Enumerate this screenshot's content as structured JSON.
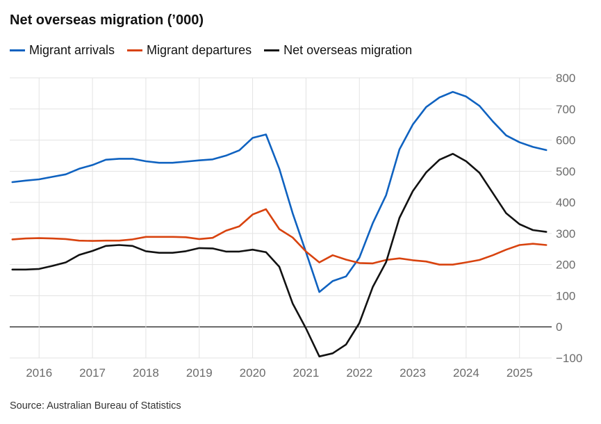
{
  "chart_data": {
    "type": "line",
    "title": "Net overseas migration (’000)",
    "source": "Source: Australian Bureau of Statistics",
    "legend_position": "top-left",
    "grid": true,
    "x_range": [
      2015.45,
      2025.55
    ],
    "ylim": [
      -100,
      800
    ],
    "y_ticks": [
      -100,
      0,
      100,
      200,
      300,
      400,
      500,
      600,
      700,
      800
    ],
    "y_tick_labels": [
      "−100",
      "0",
      "100",
      "200",
      "300",
      "400",
      "500",
      "600",
      "700",
      "800"
    ],
    "x_ticks": [
      2016,
      2017,
      2018,
      2019,
      2020,
      2021,
      2022,
      2023,
      2024,
      2025
    ],
    "x_tick_labels": [
      "2016",
      "2017",
      "2018",
      "2019",
      "2020",
      "2021",
      "2022",
      "2023",
      "2024",
      "2025"
    ],
    "x": [
      2015.5,
      2015.75,
      2016.0,
      2016.25,
      2016.5,
      2016.75,
      2017.0,
      2017.25,
      2017.5,
      2017.75,
      2018.0,
      2018.25,
      2018.5,
      2018.75,
      2019.0,
      2019.25,
      2019.5,
      2019.75,
      2020.0,
      2020.25,
      2020.5,
      2020.75,
      2021.0,
      2021.25,
      2021.5,
      2021.75,
      2022.0,
      2022.25,
      2022.5,
      2022.75,
      2023.0,
      2023.25,
      2023.5,
      2023.75,
      2024.0,
      2024.25,
      2024.5,
      2024.75,
      2025.0,
      2025.25,
      2025.5
    ],
    "series": [
      {
        "name": "Migrant arrivals",
        "color": "#0f62c0",
        "values": [
          465,
          470,
          474,
          482,
          490,
          508,
          520,
          537,
          540,
          540,
          532,
          527,
          527,
          531,
          535,
          538,
          550,
          567,
          607,
          618,
          508,
          365,
          240,
          112,
          147,
          162,
          222,
          333,
          423,
          570,
          650,
          706,
          737,
          755,
          740,
          710,
          660,
          615,
          593,
          578,
          568
        ]
      },
      {
        "name": "Migrant departures",
        "color": "#d8430f",
        "values": [
          281,
          284,
          285,
          284,
          282,
          277,
          276,
          277,
          277,
          281,
          289,
          289,
          289,
          288,
          282,
          286,
          309,
          323,
          361,
          378,
          314,
          287,
          242,
          207,
          230,
          216,
          205,
          204,
          215,
          220,
          214,
          210,
          200,
          200,
          207,
          215,
          230,
          248,
          263,
          267,
          263
        ]
      },
      {
        "name": "Net overseas migration",
        "color": "#121212",
        "values": [
          184,
          184,
          186,
          196,
          207,
          231,
          244,
          260,
          263,
          260,
          243,
          238,
          238,
          243,
          253,
          252,
          242,
          242,
          248,
          240,
          193,
          75,
          -5,
          -95,
          -85,
          -57,
          12,
          128,
          208,
          350,
          436,
          496,
          537,
          556,
          532,
          495,
          430,
          365,
          330,
          311,
          305
        ]
      }
    ]
  }
}
